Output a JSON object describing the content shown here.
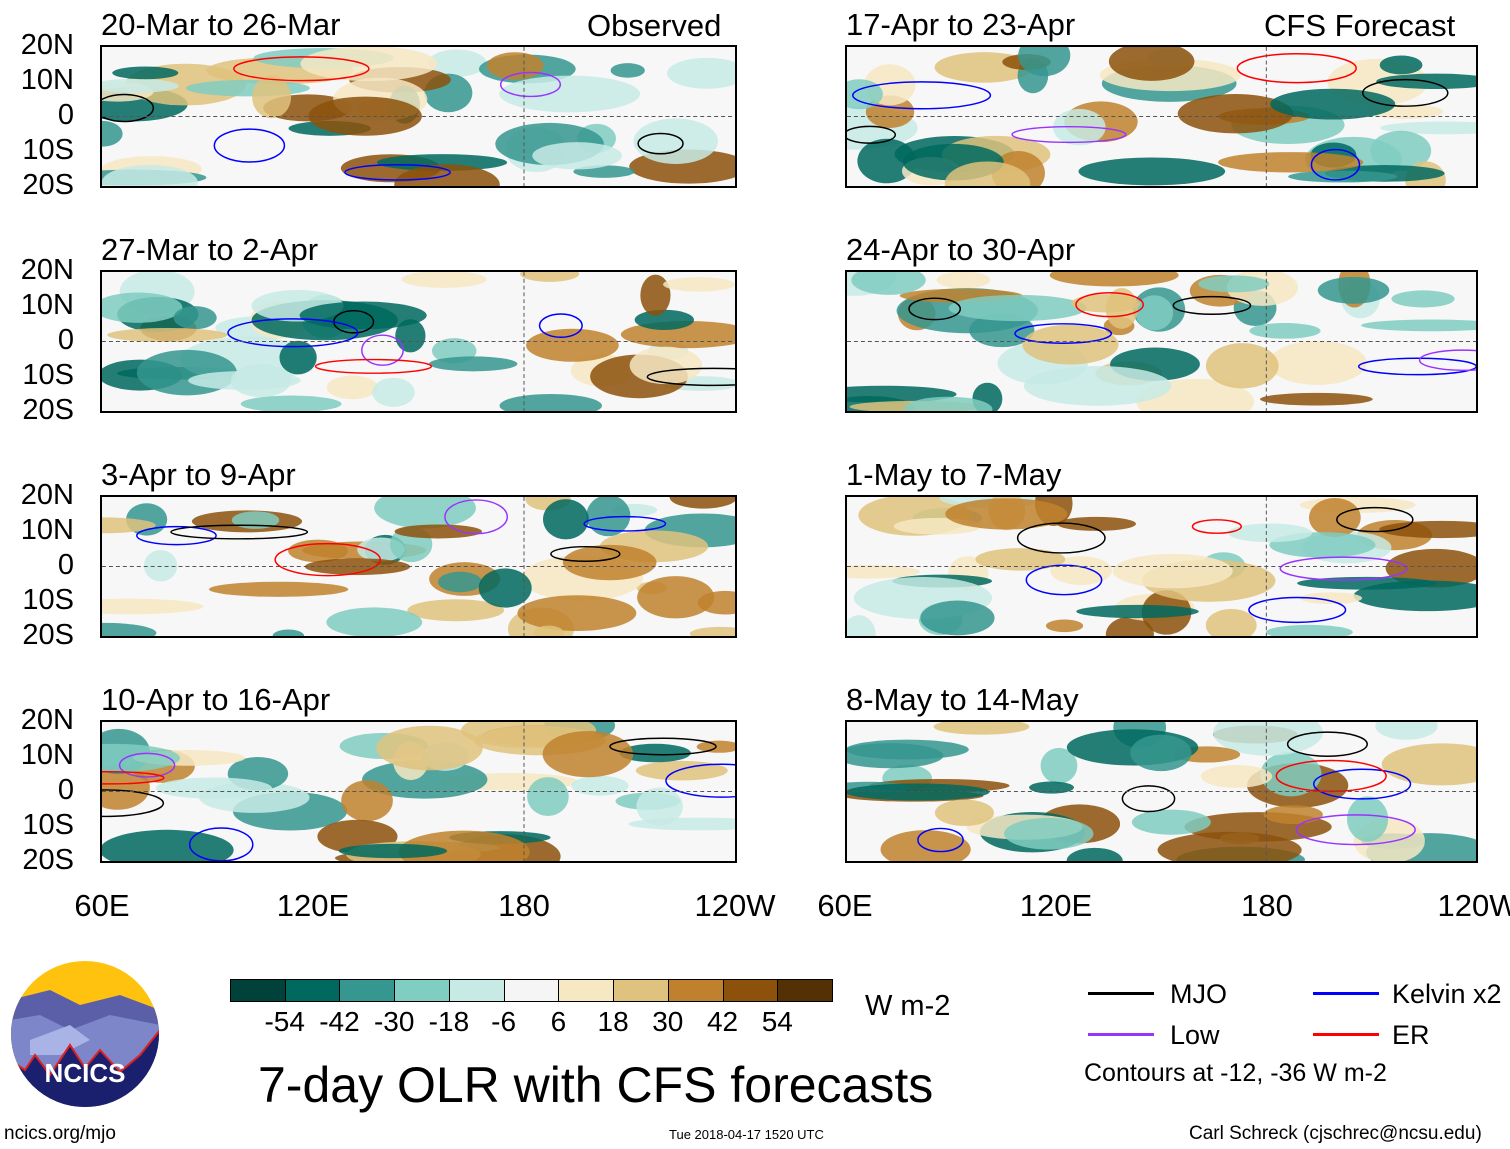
{
  "title": "7-day OLR with CFS forecasts",
  "left_column_label": "Observed",
  "right_column_label": "CFS Forecast",
  "panels_left": [
    "20-Mar to 26-Mar",
    "27-Mar to 2-Apr",
    "3-Apr to 9-Apr",
    "10-Apr to 16-Apr"
  ],
  "panels_right": [
    "17-Apr to 23-Apr",
    "24-Apr to 30-Apr",
    "1-May to 7-May",
    "8-May to 14-May"
  ],
  "lat_ticks": [
    "20N",
    "10N",
    "0",
    "10S",
    "20S"
  ],
  "lon_ticks": [
    "60E",
    "120E",
    "180",
    "120W"
  ],
  "colorbar": {
    "labels": [
      "-54",
      "-42",
      "-30",
      "-18",
      "-6",
      "6",
      "18",
      "30",
      "42",
      "54"
    ],
    "colors": [
      "#00413a",
      "#00695f",
      "#35978f",
      "#80cdc1",
      "#c7eae5",
      "#f5f5f5",
      "#f6e8c3",
      "#dfc27d",
      "#bf812d",
      "#8c510a",
      "#543005"
    ],
    "units": "W m-2"
  },
  "legend": {
    "items": [
      {
        "label": "MJO",
        "color": "#000000"
      },
      {
        "label": "Kelvin x2",
        "color": "#0000ff"
      },
      {
        "label": "Low",
        "color": "#9933ff"
      },
      {
        "label": "ER",
        "color": "#ff0000"
      }
    ],
    "note": "Contours at -12, -36 W m-2"
  },
  "footer": {
    "url": "ncics.org/mjo",
    "timestamp": "Tue 2018-04-17 1520 UTC",
    "author": "Carl Schreck (cjschrec@ncsu.edu)"
  },
  "logo_text": "NCICS"
}
